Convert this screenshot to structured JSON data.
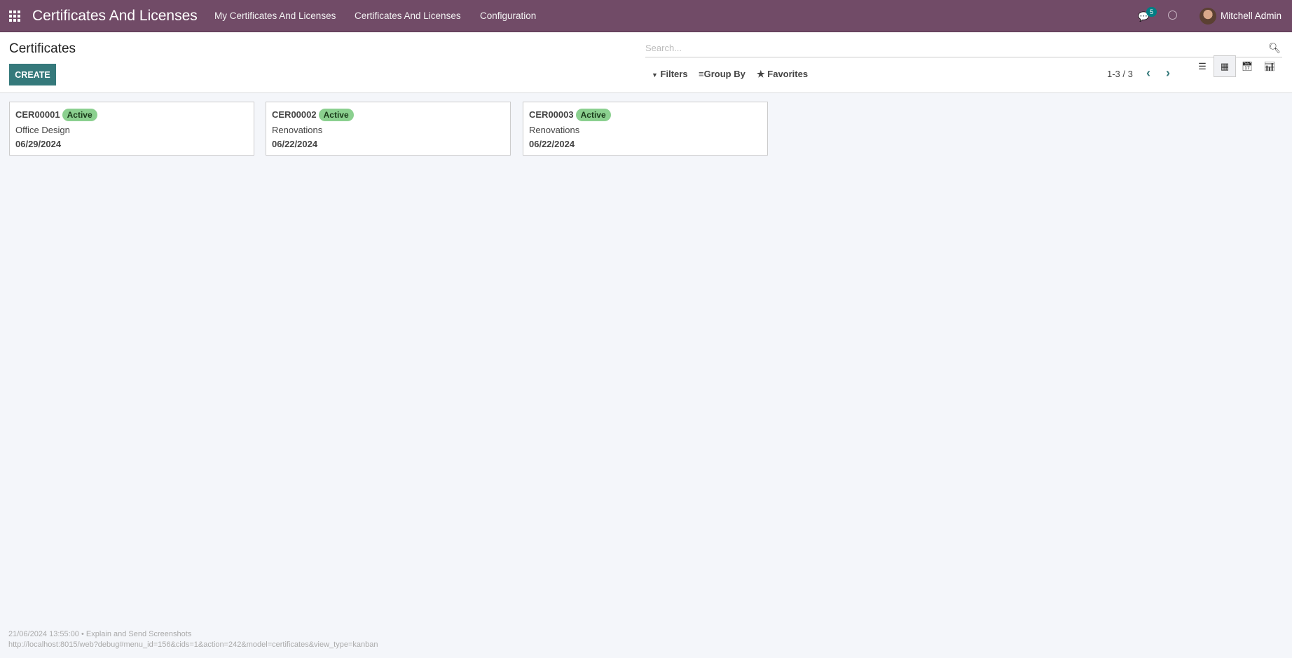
{
  "navbar": {
    "app_title": "Certificates And Licenses",
    "menu": [
      "My Certificates And Licenses",
      "Certificates And Licenses",
      "Configuration"
    ],
    "message_count": "5",
    "user": "Mitchell Admin",
    "color": "#714b67"
  },
  "control_panel": {
    "title": "Certificates",
    "create_label": "CREATE",
    "search_placeholder": "Search...",
    "filters": "Filters",
    "group_by": "Group By",
    "favorites": "Favorites",
    "pager": "1-3 / 3",
    "active_view": "kanban"
  },
  "cards": [
    {
      "ref": "CER00001",
      "status": "Active",
      "name": "Office Design",
      "date": "06/29/2024"
    },
    {
      "ref": "CER00002",
      "status": "Active",
      "name": "Renovations",
      "date": "06/22/2024"
    },
    {
      "ref": "CER00003",
      "status": "Active",
      "name": "Renovations",
      "date": "06/22/2024"
    }
  ],
  "footer": {
    "line1": "21/06/2024 13:55:00 • Explain and Send Screenshots",
    "line2": "http://localhost:8015/web?debug#menu_id=156&cids=1&action=242&model=certificates&view_type=kanban"
  }
}
